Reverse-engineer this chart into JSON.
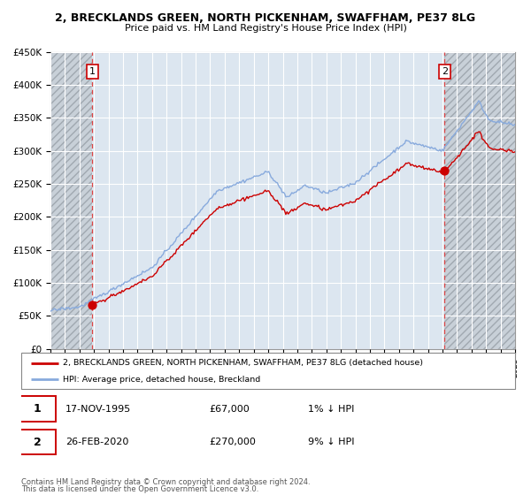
{
  "title_line1": "2, BRECKLANDS GREEN, NORTH PICKENHAM, SWAFFHAM, PE37 8LG",
  "title_line2": "Price paid vs. HM Land Registry's House Price Index (HPI)",
  "ylim": [
    0,
    450000
  ],
  "yticks": [
    0,
    50000,
    100000,
    150000,
    200000,
    250000,
    300000,
    350000,
    400000,
    450000
  ],
  "ytick_labels": [
    "£0",
    "£50K",
    "£100K",
    "£150K",
    "£200K",
    "£250K",
    "£300K",
    "£350K",
    "£400K",
    "£450K"
  ],
  "xstart_year": 1993,
  "xend_year": 2025,
  "sale1_year": 1995.88,
  "sale1_price": 67000,
  "sale2_year": 2020.15,
  "sale2_price": 270000,
  "property_color": "#cc0000",
  "hpi_color": "#88aadd",
  "background_color": "#ffffff",
  "plot_bg_color": "#dce6f0",
  "grid_color": "#ffffff",
  "hatch_bg_color": "#c8d0d8",
  "hatch_edge_color": "#a0a8b0",
  "legend_label1": "2, BRECKLANDS GREEN, NORTH PICKENHAM, SWAFFHAM, PE37 8LG (detached house)",
  "legend_label2": "HPI: Average price, detached house, Breckland",
  "footer_line1": "Contains HM Land Registry data © Crown copyright and database right 2024.",
  "footer_line2": "This data is licensed under the Open Government Licence v3.0.",
  "table_row1": [
    "1",
    "17-NOV-1995",
    "£67,000",
    "1% ↓ HPI"
  ],
  "table_row2": [
    "2",
    "26-FEB-2020",
    "£270,000",
    "9% ↓ HPI"
  ]
}
